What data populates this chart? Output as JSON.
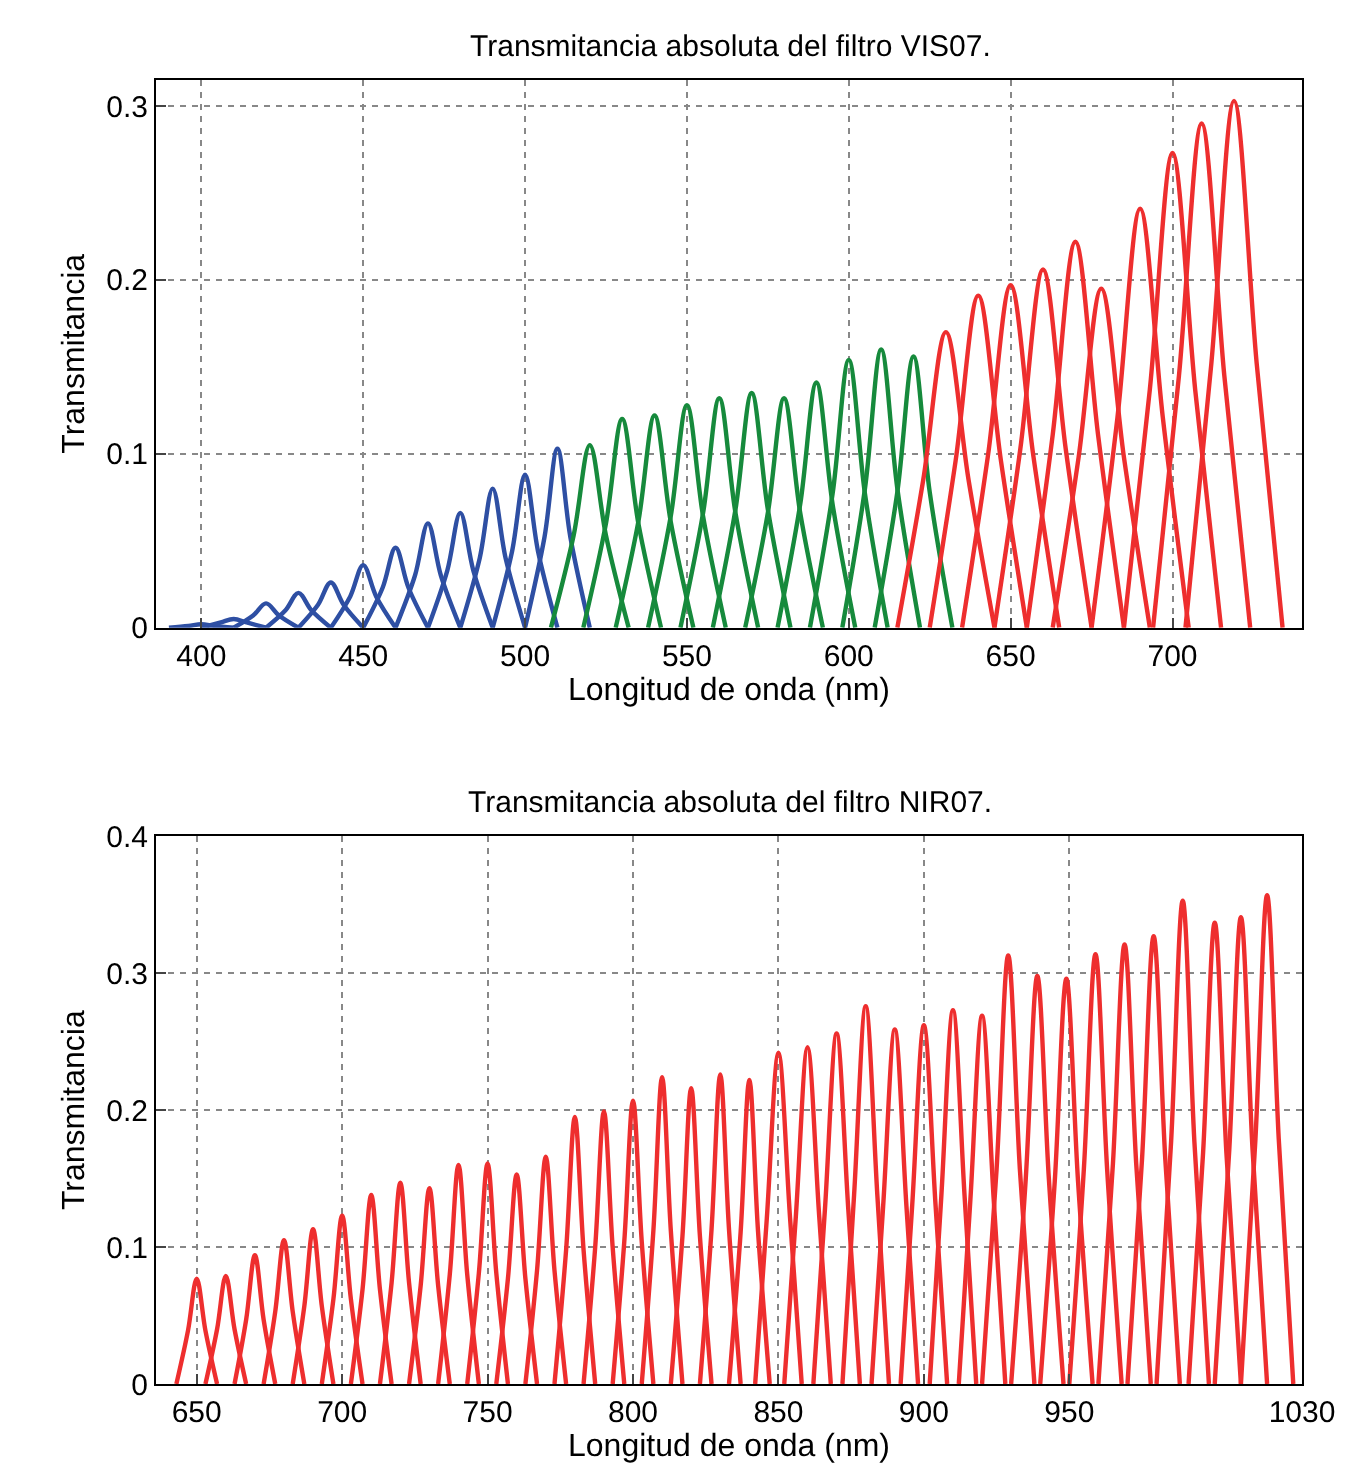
{
  "chart_data": [
    {
      "type": "line",
      "title": "Transmitancia absoluta del filtro VIS07.",
      "xlabel": "Longitud de onda (nm)",
      "ylabel": "Transmitancia",
      "xlim": [
        386,
        740
      ],
      "xticks": [
        400,
        450,
        500,
        550,
        600,
        650,
        700
      ],
      "ylim": [
        0,
        0.315
      ],
      "yticks": [
        0,
        0.1,
        0.2,
        0.3
      ],
      "grid": true,
      "series": [
        {
          "color": "#2e4fa3",
          "x": [
            390,
            396,
            400,
            404,
            410
          ],
          "values": [
            0,
            0.001,
            0.002,
            0.001,
            0
          ]
        },
        {
          "color": "#2e4fa3",
          "x": [
            400,
            406,
            410,
            414,
            420
          ],
          "values": [
            0,
            0.003,
            0.005,
            0.003,
            0
          ]
        },
        {
          "color": "#2e4fa3",
          "x": [
            410,
            416,
            420,
            424,
            430
          ],
          "values": [
            0,
            0.007,
            0.014,
            0.007,
            0
          ]
        },
        {
          "color": "#2e4fa3",
          "x": [
            420,
            426,
            430,
            434,
            440
          ],
          "values": [
            0,
            0.01,
            0.02,
            0.01,
            0
          ]
        },
        {
          "color": "#2e4fa3",
          "x": [
            430,
            436,
            440,
            444,
            450
          ],
          "values": [
            0,
            0.013,
            0.026,
            0.013,
            0
          ]
        },
        {
          "color": "#2e4fa3",
          "x": [
            440,
            446,
            450,
            454,
            460
          ],
          "values": [
            0,
            0.018,
            0.036,
            0.018,
            0
          ]
        },
        {
          "color": "#2e4fa3",
          "x": [
            450,
            456,
            460,
            464,
            470
          ],
          "values": [
            0,
            0.023,
            0.046,
            0.023,
            0
          ]
        },
        {
          "color": "#2e4fa3",
          "x": [
            460,
            466,
            470,
            474,
            480
          ],
          "values": [
            0,
            0.03,
            0.06,
            0.03,
            0
          ]
        },
        {
          "color": "#2e4fa3",
          "x": [
            470,
            476,
            480,
            484,
            490
          ],
          "values": [
            0,
            0.033,
            0.066,
            0.033,
            0
          ]
        },
        {
          "color": "#2e4fa3",
          "x": [
            480,
            486,
            490,
            494,
            500
          ],
          "values": [
            0,
            0.04,
            0.08,
            0.04,
            0
          ]
        },
        {
          "color": "#2e4fa3",
          "x": [
            490,
            496,
            500,
            504,
            510
          ],
          "values": [
            0,
            0.044,
            0.088,
            0.044,
            0
          ]
        },
        {
          "color": "#2e4fa3",
          "x": [
            500,
            506,
            510,
            514,
            520
          ],
          "values": [
            0,
            0.052,
            0.103,
            0.052,
            0
          ]
        },
        {
          "color": "#168a3c",
          "x": [
            508,
            515,
            520,
            525,
            532
          ],
          "values": [
            0,
            0.053,
            0.105,
            0.053,
            0
          ]
        },
        {
          "color": "#168a3c",
          "x": [
            518,
            525,
            530,
            535,
            542
          ],
          "values": [
            0,
            0.06,
            0.12,
            0.06,
            0
          ]
        },
        {
          "color": "#168a3c",
          "x": [
            528,
            535,
            540,
            545,
            552
          ],
          "values": [
            0,
            0.061,
            0.122,
            0.061,
            0
          ]
        },
        {
          "color": "#168a3c",
          "x": [
            538,
            545,
            550,
            555,
            562
          ],
          "values": [
            0,
            0.064,
            0.128,
            0.064,
            0
          ]
        },
        {
          "color": "#168a3c",
          "x": [
            548,
            555,
            560,
            565,
            572
          ],
          "values": [
            0,
            0.066,
            0.132,
            0.066,
            0
          ]
        },
        {
          "color": "#168a3c",
          "x": [
            558,
            565,
            570,
            575,
            582
          ],
          "values": [
            0,
            0.068,
            0.135,
            0.068,
            0
          ]
        },
        {
          "color": "#168a3c",
          "x": [
            568,
            575,
            580,
            585,
            592
          ],
          "values": [
            0,
            0.066,
            0.132,
            0.066,
            0
          ]
        },
        {
          "color": "#168a3c",
          "x": [
            578,
            585,
            590,
            595,
            602
          ],
          "values": [
            0,
            0.071,
            0.141,
            0.071,
            0
          ]
        },
        {
          "color": "#168a3c",
          "x": [
            588,
            595,
            600,
            605,
            612
          ],
          "values": [
            0,
            0.077,
            0.154,
            0.077,
            0
          ]
        },
        {
          "color": "#168a3c",
          "x": [
            598,
            605,
            610,
            615,
            622
          ],
          "values": [
            0,
            0.08,
            0.16,
            0.08,
            0
          ]
        },
        {
          "color": "#168a3c",
          "x": [
            608,
            615,
            620,
            625,
            632
          ],
          "values": [
            0,
            0.078,
            0.156,
            0.078,
            0
          ]
        },
        {
          "color": "#ee2e2e",
          "x": [
            615,
            623,
            630,
            637,
            645
          ],
          "values": [
            0,
            0.085,
            0.17,
            0.085,
            0
          ]
        },
        {
          "color": "#ee2e2e",
          "x": [
            625,
            633,
            640,
            647,
            655
          ],
          "values": [
            0,
            0.096,
            0.191,
            0.096,
            0
          ]
        },
        {
          "color": "#ee2e2e",
          "x": [
            635,
            643,
            650,
            657,
            665
          ],
          "values": [
            0,
            0.099,
            0.197,
            0.099,
            0
          ]
        },
        {
          "color": "#ee2e2e",
          "x": [
            645,
            653,
            660,
            667,
            675
          ],
          "values": [
            0,
            0.103,
            0.206,
            0.103,
            0
          ]
        },
        {
          "color": "#ee2e2e",
          "x": [
            655,
            663,
            670,
            677,
            685
          ],
          "values": [
            0,
            0.111,
            0.222,
            0.111,
            0
          ]
        },
        {
          "color": "#ee2e2e",
          "x": [
            663,
            671,
            678,
            685,
            693
          ],
          "values": [
            0,
            0.098,
            0.195,
            0.098,
            0
          ]
        },
        {
          "color": "#ee2e2e",
          "x": [
            675,
            683,
            690,
            697,
            705
          ],
          "values": [
            0,
            0.121,
            0.241,
            0.121,
            0
          ]
        },
        {
          "color": "#ee2e2e",
          "x": [
            685,
            693,
            700,
            707,
            715
          ],
          "values": [
            0,
            0.137,
            0.273,
            0.137,
            0
          ]
        },
        {
          "color": "#ee2e2e",
          "x": [
            694,
            702,
            709,
            716,
            724
          ],
          "values": [
            0,
            0.145,
            0.29,
            0.145,
            0
          ]
        },
        {
          "color": "#ee2e2e",
          "x": [
            704,
            712,
            719,
            726,
            734
          ],
          "values": [
            0,
            0.152,
            0.303,
            0.152,
            0
          ]
        }
      ]
    },
    {
      "type": "line",
      "title": "Transmitancia absoluta del filtro NIR07.",
      "xlabel": "Longitud de onda (nm)",
      "ylabel": "Transmitancia",
      "xlim": [
        636,
        1030
      ],
      "xticks": [
        650,
        700,
        750,
        800,
        850,
        900,
        950,
        1030
      ],
      "ylim": [
        0,
        0.4
      ],
      "yticks": [
        0,
        0.1,
        0.2,
        0.3,
        0.4
      ],
      "grid": true,
      "series": [
        {
          "color": "#ee2e2e",
          "x": [
            643,
            647,
            650,
            653,
            657
          ],
          "values": [
            0,
            0.039,
            0.077,
            0.039,
            0
          ]
        },
        {
          "color": "#ee2e2e",
          "x": [
            653,
            657,
            660,
            663,
            667
          ],
          "values": [
            0,
            0.04,
            0.079,
            0.04,
            0
          ]
        },
        {
          "color": "#ee2e2e",
          "x": [
            663,
            667,
            670,
            673,
            677
          ],
          "values": [
            0,
            0.047,
            0.094,
            0.047,
            0
          ]
        },
        {
          "color": "#ee2e2e",
          "x": [
            673,
            677,
            680,
            683,
            687
          ],
          "values": [
            0,
            0.053,
            0.105,
            0.053,
            0
          ]
        },
        {
          "color": "#ee2e2e",
          "x": [
            683,
            687,
            690,
            693,
            697
          ],
          "values": [
            0,
            0.057,
            0.113,
            0.057,
            0
          ]
        },
        {
          "color": "#ee2e2e",
          "x": [
            693,
            697,
            700,
            703,
            707
          ],
          "values": [
            0,
            0.062,
            0.123,
            0.062,
            0
          ]
        },
        {
          "color": "#ee2e2e",
          "x": [
            703,
            707,
            710,
            713,
            717
          ],
          "values": [
            0,
            0.069,
            0.138,
            0.069,
            0
          ]
        },
        {
          "color": "#ee2e2e",
          "x": [
            713,
            717,
            720,
            723,
            727
          ],
          "values": [
            0,
            0.074,
            0.147,
            0.074,
            0
          ]
        },
        {
          "color": "#ee2e2e",
          "x": [
            723,
            727,
            730,
            733,
            737
          ],
          "values": [
            0,
            0.072,
            0.143,
            0.072,
            0
          ]
        },
        {
          "color": "#ee2e2e",
          "x": [
            733,
            737,
            740,
            743,
            747
          ],
          "values": [
            0,
            0.08,
            0.16,
            0.08,
            0
          ]
        },
        {
          "color": "#ee2e2e",
          "x": [
            743,
            747,
            750,
            753,
            757
          ],
          "values": [
            0,
            0.081,
            0.161,
            0.081,
            0
          ]
        },
        {
          "color": "#ee2e2e",
          "x": [
            753,
            757,
            760,
            763,
            767
          ],
          "values": [
            0,
            0.077,
            0.153,
            0.077,
            0
          ]
        },
        {
          "color": "#ee2e2e",
          "x": [
            763,
            767,
            770,
            773,
            777
          ],
          "values": [
            0,
            0.083,
            0.166,
            0.083,
            0
          ]
        },
        {
          "color": "#ee2e2e",
          "x": [
            773,
            777,
            780,
            783,
            787
          ],
          "values": [
            0,
            0.098,
            0.195,
            0.098,
            0
          ]
        },
        {
          "color": "#ee2e2e",
          "x": [
            783,
            787,
            790,
            793,
            797
          ],
          "values": [
            0,
            0.1,
            0.199,
            0.1,
            0
          ]
        },
        {
          "color": "#ee2e2e",
          "x": [
            793,
            797,
            800,
            803,
            807
          ],
          "values": [
            0,
            0.104,
            0.207,
            0.104,
            0
          ]
        },
        {
          "color": "#ee2e2e",
          "x": [
            803,
            807,
            810,
            813,
            817
          ],
          "values": [
            0,
            0.112,
            0.224,
            0.112,
            0
          ]
        },
        {
          "color": "#ee2e2e",
          "x": [
            813,
            817,
            820,
            823,
            827
          ],
          "values": [
            0,
            0.108,
            0.216,
            0.108,
            0
          ]
        },
        {
          "color": "#ee2e2e",
          "x": [
            823,
            827,
            830,
            833,
            837
          ],
          "values": [
            0,
            0.113,
            0.226,
            0.113,
            0
          ]
        },
        {
          "color": "#ee2e2e",
          "x": [
            833,
            837,
            840,
            843,
            847
          ],
          "values": [
            0,
            0.111,
            0.222,
            0.111,
            0
          ]
        },
        {
          "color": "#ee2e2e",
          "x": [
            842,
            846,
            850,
            854,
            858
          ],
          "values": [
            0,
            0.121,
            0.242,
            0.121,
            0
          ]
        },
        {
          "color": "#ee2e2e",
          "x": [
            852,
            856,
            860,
            864,
            868
          ],
          "values": [
            0,
            0.123,
            0.246,
            0.123,
            0
          ]
        },
        {
          "color": "#ee2e2e",
          "x": [
            862,
            866,
            870,
            874,
            878
          ],
          "values": [
            0,
            0.128,
            0.256,
            0.128,
            0
          ]
        },
        {
          "color": "#ee2e2e",
          "x": [
            872,
            876,
            880,
            884,
            888
          ],
          "values": [
            0,
            0.138,
            0.276,
            0.138,
            0
          ]
        },
        {
          "color": "#ee2e2e",
          "x": [
            882,
            886,
            890,
            894,
            898
          ],
          "values": [
            0,
            0.13,
            0.259,
            0.13,
            0
          ]
        },
        {
          "color": "#ee2e2e",
          "x": [
            892,
            896,
            900,
            904,
            908
          ],
          "values": [
            0,
            0.131,
            0.262,
            0.131,
            0
          ]
        },
        {
          "color": "#ee2e2e",
          "x": [
            902,
            906,
            910,
            914,
            918
          ],
          "values": [
            0,
            0.137,
            0.273,
            0.137,
            0
          ]
        },
        {
          "color": "#ee2e2e",
          "x": [
            912,
            916,
            920,
            924,
            928
          ],
          "values": [
            0,
            0.135,
            0.269,
            0.135,
            0
          ]
        },
        {
          "color": "#ee2e2e",
          "x": [
            920,
            925,
            929,
            933,
            938
          ],
          "values": [
            0,
            0.157,
            0.313,
            0.157,
            0
          ]
        },
        {
          "color": "#ee2e2e",
          "x": [
            930,
            935,
            939,
            943,
            948
          ],
          "values": [
            0,
            0.149,
            0.298,
            0.149,
            0
          ]
        },
        {
          "color": "#ee2e2e",
          "x": [
            940,
            945,
            949,
            953,
            958
          ],
          "values": [
            0,
            0.148,
            0.296,
            0.148,
            0
          ]
        },
        {
          "color": "#ee2e2e",
          "x": [
            950,
            955,
            959,
            963,
            968
          ],
          "values": [
            0,
            0.157,
            0.314,
            0.157,
            0
          ]
        },
        {
          "color": "#ee2e2e",
          "x": [
            960,
            965,
            969,
            973,
            978
          ],
          "values": [
            0,
            0.161,
            0.321,
            0.161,
            0
          ]
        },
        {
          "color": "#ee2e2e",
          "x": [
            970,
            975,
            979,
            983,
            988
          ],
          "values": [
            0,
            0.164,
            0.327,
            0.164,
            0
          ]
        },
        {
          "color": "#ee2e2e",
          "x": [
            980,
            985,
            989,
            993,
            998
          ],
          "values": [
            0,
            0.177,
            0.353,
            0.177,
            0
          ]
        },
        {
          "color": "#ee2e2e",
          "x": [
            991,
            996,
            1000,
            1004,
            1009
          ],
          "values": [
            0,
            0.169,
            0.337,
            0.169,
            0
          ]
        },
        {
          "color": "#ee2e2e",
          "x": [
            1000,
            1005,
            1009,
            1013,
            1018
          ],
          "values": [
            0,
            0.171,
            0.341,
            0.171,
            0
          ]
        },
        {
          "color": "#ee2e2e",
          "x": [
            1009,
            1014,
            1018,
            1022,
            1027
          ],
          "values": [
            0,
            0.179,
            0.357,
            0.179,
            0
          ]
        }
      ]
    }
  ]
}
